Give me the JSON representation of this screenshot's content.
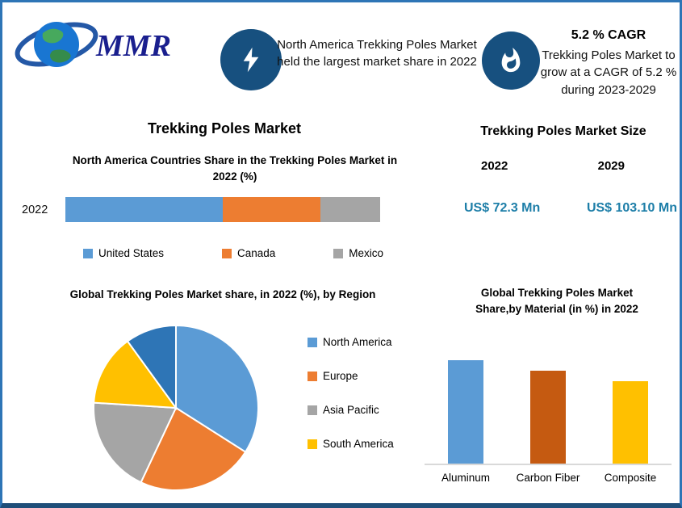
{
  "colors": {
    "border": "#2e75b6",
    "border_bottom": "#1f4e79",
    "icon_circle": "#17507f",
    "value_text": "#1d7ea8",
    "axis_line": "#d9d9d9",
    "logo_text": "#1a1f8e"
  },
  "logo": {
    "text": "MMR"
  },
  "stats": {
    "share": {
      "icon": "lightning-icon",
      "text": "North America Trekking Poles Market held the largest market share in 2022"
    },
    "cagr": {
      "icon": "flame-icon",
      "title": "5.2 % CAGR",
      "text": "Trekking Poles Market to grow at a CAGR of 5.2 % during 2023-2029"
    }
  },
  "left_panel": {
    "title": "Trekking Poles Market"
  },
  "market_size": {
    "title": "Trekking Poles Market Size",
    "years": [
      "2022",
      "2029"
    ],
    "values": [
      "US$ 72.3 Mn",
      "US$ 103.10 Mn"
    ]
  },
  "chart_data": [
    {
      "type": "bar",
      "subtype": "horizontal-stacked",
      "title": "North America Countries Share in the Trekking Poles Market in 2022 (%)",
      "categories": [
        "2022"
      ],
      "series": [
        {
          "name": "United States",
          "values": [
            50
          ],
          "color": "#5b9bd5"
        },
        {
          "name": "Canada",
          "values": [
            31
          ],
          "color": "#ed7d31"
        },
        {
          "name": "Mexico",
          "values": [
            19
          ],
          "color": "#a5a5a5"
        }
      ],
      "xlim": [
        0,
        100
      ],
      "legend_position": "bottom"
    },
    {
      "type": "pie",
      "title": "Global Trekking Poles Market share, in 2022 (%), by Region",
      "labels": [
        "North America",
        "Europe",
        "Asia Pacific",
        "South America",
        "(unlabeled slice)"
      ],
      "values": [
        34,
        23,
        19,
        14,
        10
      ],
      "colors": [
        "#5b9bd5",
        "#ed7d31",
        "#a5a5a5",
        "#ffc000",
        "#2e75b6"
      ],
      "legend": [
        "North America",
        "Europe",
        "Asia Pacific",
        "South America"
      ],
      "legend_position": "right"
    },
    {
      "type": "bar",
      "title": "Global Trekking Poles Market Share,by Material (in %) in 2022",
      "categories": [
        "Aluminum",
        "Carbon Fiber",
        "Composite"
      ],
      "values": [
        40,
        36,
        32
      ],
      "colors": [
        "#5b9bd5",
        "#c55a11",
        "#ffc000"
      ],
      "ylim": [
        0,
        45
      ]
    }
  ]
}
